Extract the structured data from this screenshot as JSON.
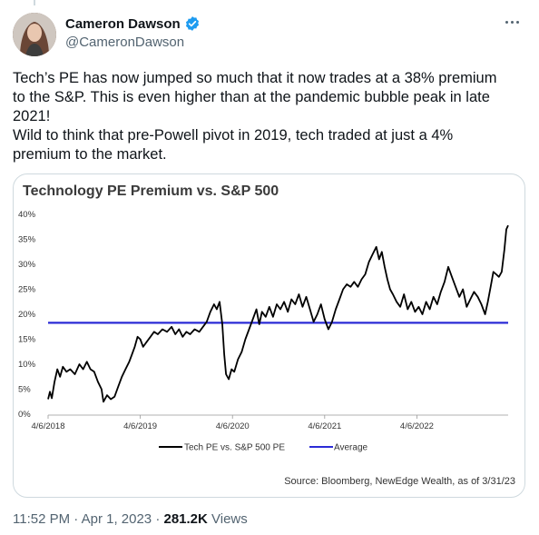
{
  "author": {
    "name": "Cameron Dawson",
    "handle": "@CameronDawson",
    "verified_color": "#1d9bf0"
  },
  "tweet": {
    "line1": "Tech’s PE has now jumped so much that it now trades at a 38% premium",
    "line2": "to the S&P. This is even higher than at the pandemic bubble peak in late",
    "line3": "2021!",
    "line4": "Wild to think that pre-Powell pivot in 2019, tech traded at just a 4%",
    "line5": "premium to the market."
  },
  "footer": {
    "time": "11:52 PM · Apr 1, 2023 · ",
    "views_count": "281.2K",
    "views_label": " Views"
  },
  "chart_data": {
    "type": "line",
    "title": "Technology PE Premium vs. S&P 500",
    "source": "Source: Bloomberg, NewEdge Wealth, as of 3/31/23",
    "y_ticks": [
      "0%",
      "5%",
      "10%",
      "15%",
      "20%",
      "25%",
      "30%",
      "35%",
      "40%"
    ],
    "ylim": [
      0,
      40
    ],
    "x_ticks": [
      "4/6/2018",
      "4/6/2019",
      "4/6/2020",
      "4/6/2021",
      "4/6/2022"
    ],
    "xlim": [
      2018.26,
      2023.25
    ],
    "grid": false,
    "legend_position": "bottom-center",
    "series": [
      {
        "name": "Tech PE vs. S&P 500 PE",
        "color": "#000000",
        "points": [
          [
            2018.26,
            3.0
          ],
          [
            2018.28,
            4.5
          ],
          [
            2018.3,
            3.2
          ],
          [
            2018.33,
            6.5
          ],
          [
            2018.36,
            9.0
          ],
          [
            2018.39,
            7.5
          ],
          [
            2018.42,
            9.5
          ],
          [
            2018.46,
            8.5
          ],
          [
            2018.5,
            9.0
          ],
          [
            2018.55,
            8.0
          ],
          [
            2018.6,
            10.0
          ],
          [
            2018.64,
            9.0
          ],
          [
            2018.68,
            10.5
          ],
          [
            2018.72,
            9.0
          ],
          [
            2018.76,
            8.5
          ],
          [
            2018.8,
            6.5
          ],
          [
            2018.84,
            5.0
          ],
          [
            2018.86,
            2.5
          ],
          [
            2018.9,
            3.8
          ],
          [
            2018.94,
            3.0
          ],
          [
            2018.98,
            3.5
          ],
          [
            2019.02,
            5.5
          ],
          [
            2019.06,
            7.5
          ],
          [
            2019.1,
            9.0
          ],
          [
            2019.14,
            10.5
          ],
          [
            2019.17,
            12.0
          ],
          [
            2019.2,
            13.5
          ],
          [
            2019.23,
            15.5
          ],
          [
            2019.26,
            15.0
          ],
          [
            2019.29,
            13.5
          ],
          [
            2019.33,
            14.5
          ],
          [
            2019.37,
            15.5
          ],
          [
            2019.41,
            16.5
          ],
          [
            2019.45,
            16.0
          ],
          [
            2019.5,
            17.0
          ],
          [
            2019.55,
            16.5
          ],
          [
            2019.6,
            17.5
          ],
          [
            2019.64,
            16.0
          ],
          [
            2019.68,
            17.0
          ],
          [
            2019.72,
            15.5
          ],
          [
            2019.76,
            16.5
          ],
          [
            2019.8,
            16.0
          ],
          [
            2019.85,
            17.0
          ],
          [
            2019.9,
            16.5
          ],
          [
            2019.94,
            17.5
          ],
          [
            2019.98,
            18.5
          ],
          [
            2020.02,
            20.5
          ],
          [
            2020.06,
            22.0
          ],
          [
            2020.09,
            21.0
          ],
          [
            2020.12,
            22.5
          ],
          [
            2020.15,
            18.0
          ],
          [
            2020.17,
            12.0
          ],
          [
            2020.19,
            8.0
          ],
          [
            2020.22,
            7.0
          ],
          [
            2020.25,
            9.0
          ],
          [
            2020.28,
            8.5
          ],
          [
            2020.32,
            11.0
          ],
          [
            2020.36,
            12.5
          ],
          [
            2020.4,
            15.0
          ],
          [
            2020.44,
            17.0
          ],
          [
            2020.48,
            19.0
          ],
          [
            2020.52,
            21.0
          ],
          [
            2020.55,
            18.0
          ],
          [
            2020.58,
            20.5
          ],
          [
            2020.62,
            19.5
          ],
          [
            2020.66,
            21.5
          ],
          [
            2020.7,
            19.5
          ],
          [
            2020.74,
            22.0
          ],
          [
            2020.78,
            21.0
          ],
          [
            2020.82,
            22.5
          ],
          [
            2020.86,
            20.5
          ],
          [
            2020.9,
            23.0
          ],
          [
            2020.94,
            22.0
          ],
          [
            2020.98,
            24.0
          ],
          [
            2021.02,
            21.5
          ],
          [
            2021.06,
            23.5
          ],
          [
            2021.1,
            21.0
          ],
          [
            2021.14,
            18.5
          ],
          [
            2021.18,
            20.0
          ],
          [
            2021.22,
            22.0
          ],
          [
            2021.26,
            19.0
          ],
          [
            2021.3,
            17.0
          ],
          [
            2021.34,
            18.5
          ],
          [
            2021.38,
            21.0
          ],
          [
            2021.42,
            23.0
          ],
          [
            2021.46,
            25.0
          ],
          [
            2021.5,
            26.0
          ],
          [
            2021.54,
            25.5
          ],
          [
            2021.58,
            26.5
          ],
          [
            2021.62,
            25.5
          ],
          [
            2021.66,
            27.0
          ],
          [
            2021.7,
            28.0
          ],
          [
            2021.74,
            30.5
          ],
          [
            2021.78,
            32.0
          ],
          [
            2021.82,
            33.5
          ],
          [
            2021.85,
            31.0
          ],
          [
            2021.88,
            32.5
          ],
          [
            2021.91,
            29.5
          ],
          [
            2021.94,
            27.0
          ],
          [
            2021.97,
            25.0
          ],
          [
            2022.0,
            24.0
          ],
          [
            2022.04,
            22.5
          ],
          [
            2022.08,
            21.5
          ],
          [
            2022.12,
            24.0
          ],
          [
            2022.16,
            21.0
          ],
          [
            2022.2,
            22.5
          ],
          [
            2022.24,
            20.5
          ],
          [
            2022.28,
            21.5
          ],
          [
            2022.32,
            20.0
          ],
          [
            2022.36,
            22.5
          ],
          [
            2022.4,
            21.0
          ],
          [
            2022.44,
            23.5
          ],
          [
            2022.48,
            22.0
          ],
          [
            2022.52,
            24.5
          ],
          [
            2022.56,
            26.5
          ],
          [
            2022.6,
            29.5
          ],
          [
            2022.64,
            27.5
          ],
          [
            2022.68,
            25.5
          ],
          [
            2022.72,
            23.5
          ],
          [
            2022.76,
            25.0
          ],
          [
            2022.8,
            21.5
          ],
          [
            2022.84,
            23.0
          ],
          [
            2022.88,
            24.5
          ],
          [
            2022.92,
            23.5
          ],
          [
            2022.96,
            22.0
          ],
          [
            2023.0,
            20.0
          ],
          [
            2023.03,
            22.5
          ],
          [
            2023.06,
            25.5
          ],
          [
            2023.09,
            28.5
          ],
          [
            2023.12,
            28.0
          ],
          [
            2023.15,
            27.5
          ],
          [
            2023.18,
            28.5
          ],
          [
            2023.21,
            33.0
          ],
          [
            2023.23,
            37.0
          ],
          [
            2023.25,
            37.8
          ]
        ]
      },
      {
        "name": "Average",
        "color": "#2b2bd6",
        "value": 18.3
      }
    ]
  }
}
